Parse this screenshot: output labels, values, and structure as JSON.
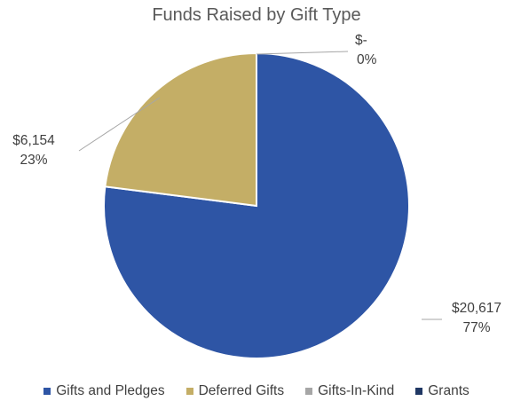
{
  "chart_data": {
    "type": "pie",
    "title": "Funds Raised by Gift Type",
    "categories": [
      "Gifts and Pledges",
      "Deferred Gifts",
      "Gifts-In-Kind",
      "Grants"
    ],
    "values": [
      20617,
      6154,
      0,
      0
    ],
    "value_labels": [
      "$20,617",
      "$6,154",
      "$-",
      ""
    ],
    "percent_labels": [
      "77%",
      "23%",
      "0%",
      ""
    ],
    "colors": [
      "#2E55A5",
      "#C4AE66",
      "#A6A6A6",
      "#203864"
    ],
    "legend_position": "bottom"
  }
}
